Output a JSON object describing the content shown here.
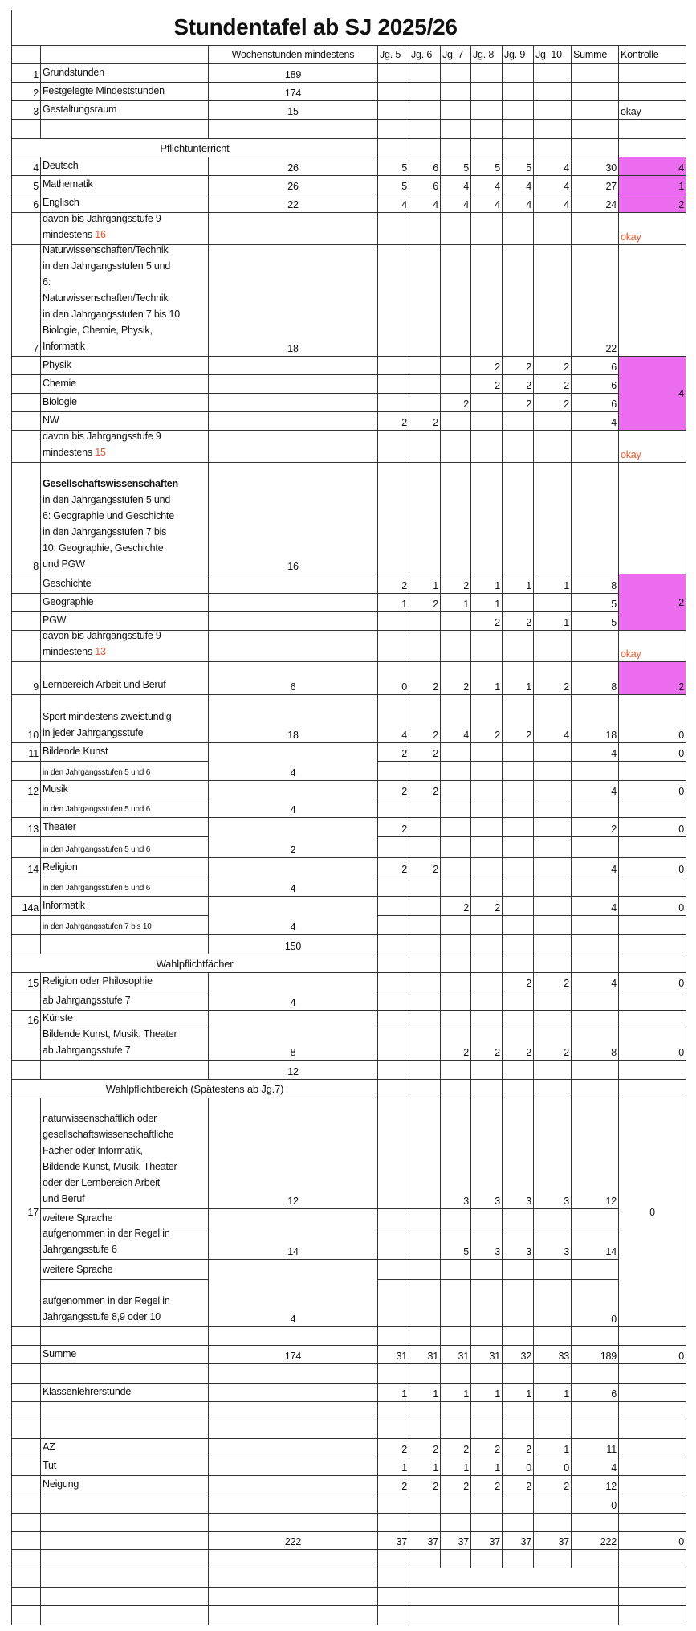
{
  "title": "Stundentafel ab SJ 2025/26",
  "header": {
    "wochen": "Wochenstunden mindestens",
    "jg": [
      "Jg. 5",
      "Jg. 6",
      "Jg. 7",
      "Jg. 8",
      "Jg. 9",
      "Jg. 10"
    ],
    "summe": "Summe",
    "kontrolle": "Kontrolle"
  },
  "sections": {
    "pflicht": "Pflichtunterricht",
    "wahlpflichtfaecher": "Wahlpflichtfächer",
    "wahlpflichtbereich": "Wahlpflichtbereich (Spätestens ab Jg.7)"
  },
  "colors": {
    "highlight": "#ec6cf0",
    "warning": "#e2572b"
  },
  "rows": [
    {
      "n": "1",
      "l": "Grundstunden",
      "w": "189"
    },
    {
      "n": "2",
      "l": "Festgelegte Mindeststunden",
      "w": "174"
    },
    {
      "n": "3",
      "l": "Gestaltungsraum",
      "w": "15",
      "k": "okay"
    },
    {
      "n": "4",
      "l": "Deutsch",
      "w": "26",
      "j": [
        "5",
        "6",
        "5",
        "5",
        "5",
        "4"
      ],
      "s": "30",
      "k": "4",
      "hl": true
    },
    {
      "n": "5",
      "l": "Mathematik",
      "w": "26",
      "j": [
        "5",
        "6",
        "4",
        "4",
        "4",
        "4"
      ],
      "s": "27",
      "k": "1",
      "hl": true
    },
    {
      "n": "6",
      "l": "Englisch",
      "w": "22",
      "j": [
        "4",
        "4",
        "4",
        "4",
        "4",
        "4"
      ],
      "s": "24",
      "k": "2",
      "hl": true
    },
    {
      "l": "davon bis Jahrgangsstufe 9\nmindestens ",
      "la": "16",
      "k": "okay",
      "warn": true
    },
    {
      "n": "7",
      "l": "Naturwissenschaften/Technik\nin den Jahrgangsstufen 5 und\n6:\nNaturwissenschaften/Technik\nin den Jahrgangsstufen 7 bis 10\nBiologie, Chemie, Physik,\nInformatik",
      "w": "18",
      "s": "22"
    },
    {
      "l": "Physik",
      "j": [
        "",
        "",
        "",
        "2",
        "2",
        "2"
      ],
      "s": "6",
      "k": "4",
      "hl": true
    },
    {
      "l": "Chemie",
      "j": [
        "",
        "",
        "",
        "2",
        "2",
        "2"
      ],
      "s": "6"
    },
    {
      "l": "Biologie",
      "j": [
        "",
        "",
        "2",
        "",
        "2",
        "2"
      ],
      "s": "6"
    },
    {
      "l": "NW",
      "j": [
        "2",
        "2",
        "",
        "",
        "",
        ""
      ],
      "s": "4"
    },
    {
      "l": "davon bis Jahrgangsstufe 9\nmindestens ",
      "la": "15",
      "k": "okay",
      "warn": true
    },
    {
      "n": "8",
      "lb": "Gesellschaftswissenschaften",
      "l": "in den Jahrgangsstufen 5 und\n6: Geographie und Geschichte\nin den Jahrgangsstufen 7 bis\n10: Geographie, Geschichte\nund PGW",
      "w": "16"
    },
    {
      "l": "Geschichte",
      "j": [
        "2",
        "1",
        "2",
        "1",
        "1",
        "1"
      ],
      "s": "8",
      "k": "2",
      "hl": true
    },
    {
      "l": "Geographie",
      "j": [
        "1",
        "2",
        "1",
        "1",
        "",
        ""
      ],
      "s": "5"
    },
    {
      "l": "PGW",
      "j": [
        "",
        "",
        "",
        "2",
        "2",
        "1"
      ],
      "s": "5"
    },
    {
      "l": "davon bis Jahrgangsstufe 9\nmindestens ",
      "la": "13",
      "k": "okay",
      "warn": true
    },
    {
      "n": "9",
      "l": "Lernbereich Arbeit und Beruf",
      "w": "6",
      "j": [
        "0",
        "2",
        "2",
        "1",
        "1",
        "2"
      ],
      "s": "8",
      "k": "2",
      "hl": true
    },
    {
      "n": "10",
      "l": "Sport mindestens zweistündig\nin jeder Jahrgangsstufe",
      "w": "18",
      "j": [
        "4",
        "2",
        "4",
        "2",
        "2",
        "4"
      ],
      "s": "18",
      "k": "0"
    },
    {
      "n": "11",
      "l": "Bildende Kunst",
      "w": "4",
      "j": [
        "2",
        "2",
        "",
        "",
        "",
        ""
      ],
      "s": "4",
      "k": "0"
    },
    {
      "l": "in den Jahrgangsstufen 5 und 6",
      "sm": true
    },
    {
      "n": "12",
      "l": "Musik",
      "w": "4",
      "j": [
        "2",
        "2",
        "",
        "",
        "",
        ""
      ],
      "s": "4",
      "k": "0"
    },
    {
      "l": "in den Jahrgangsstufen 5 und 6",
      "sm": true
    },
    {
      "n": "13",
      "l": "Theater",
      "w": "2",
      "j": [
        "2",
        "",
        "",
        "",
        "",
        ""
      ],
      "s": "2",
      "k": "0"
    },
    {
      "l": "in den Jahrgangsstufen 5 und 6",
      "sm": true
    },
    {
      "n": "14",
      "l": "Religion",
      "w": "4",
      "j": [
        "2",
        "2",
        "",
        "",
        "",
        ""
      ],
      "s": "4",
      "k": "0"
    },
    {
      "l": "in den Jahrgangsstufen 5 und 6",
      "sm": true
    },
    {
      "n": "14a",
      "l": "Informatik",
      "w": "4",
      "j": [
        "",
        "",
        "2",
        "2",
        "",
        ""
      ],
      "s": "4",
      "k": "0"
    },
    {
      "l": "in den Jahrgangsstufen 7 bis 10",
      "sm": true
    },
    {
      "w": "150"
    },
    {
      "n": "15",
      "l": "Religion oder Philosophie",
      "w": "4",
      "j": [
        "",
        "",
        "",
        "",
        "2",
        "2"
      ],
      "s": "4",
      "k": "0"
    },
    {
      "l": "ab Jahrgangsstufe 7"
    },
    {
      "n": "16",
      "l": "Künste",
      "w": "8"
    },
    {
      "l": "Bildende Kunst, Musik, Theater\nab Jahrgangsstufe 7",
      "j": [
        "",
        "",
        "2",
        "2",
        "2",
        "2"
      ],
      "s": "8",
      "k": "0"
    },
    {
      "w": "12"
    },
    {
      "n": "17",
      "l": "naturwissenschaftlich oder\ngesellschaftswissenschaftliche\nFächer oder Informatik,\nBildende Kunst, Musik, Theater\noder der Lernbereich Arbeit\nund Beruf",
      "w": "12",
      "j": [
        "",
        "",
        "3",
        "3",
        "3",
        "3"
      ],
      "s": "12",
      "k": "0"
    },
    {
      "l": "weitere Sprache",
      "w": "14"
    },
    {
      "l": "aufgenommen in der Regel in\nJahrgangsstufe 6",
      "j": [
        "",
        "",
        "5",
        "3",
        "3",
        "3"
      ],
      "s": "14"
    },
    {
      "l": "weitere Sprache",
      "w": "4"
    },
    {
      "l": "aufgenommen in der Regel in\nJahrgangsstufe 8,9 oder 10",
      "s": "0"
    },
    {
      "l": "Summe",
      "w": "174",
      "j": [
        "31",
        "31",
        "31",
        "31",
        "32",
        "33"
      ],
      "s": "189",
      "k": "0"
    },
    {
      "l": "Klassenlehrerstunde",
      "j": [
        "1",
        "1",
        "1",
        "1",
        "1",
        "1"
      ],
      "s": "6"
    },
    {
      "l": "AZ",
      "j": [
        "2",
        "2",
        "2",
        "2",
        "2",
        "1"
      ],
      "s": "11"
    },
    {
      "l": "Tut",
      "j": [
        "1",
        "1",
        "1",
        "1",
        "0",
        "0"
      ],
      "s": "4"
    },
    {
      "l": "Neigung",
      "j": [
        "2",
        "2",
        "2",
        "2",
        "2",
        "2"
      ],
      "s": "12"
    },
    {
      "s": "0"
    },
    {
      "w": "222",
      "j": [
        "37",
        "37",
        "37",
        "37",
        "37",
        "37"
      ],
      "s": "222",
      "k": "0"
    }
  ]
}
